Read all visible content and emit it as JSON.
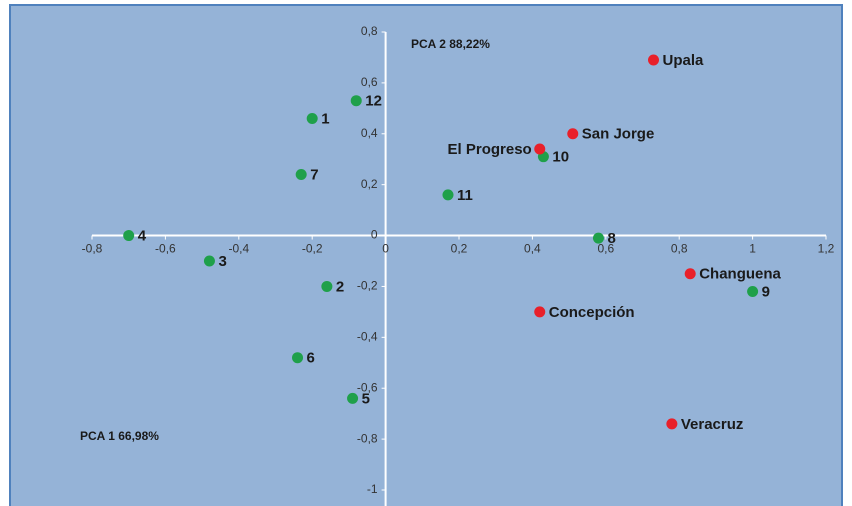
{
  "chart_data": {
    "type": "scatter",
    "annotations": [
      "PCA 2 88,22%",
      "PCA 1 66,98%"
    ],
    "xlim": [
      -0.8,
      1.2
    ],
    "ylim": [
      -1,
      0.8
    ],
    "xticks": [
      {
        "value": -0.8,
        "label": "-0,8"
      },
      {
        "value": -0.6,
        "label": "-0,6"
      },
      {
        "value": -0.4,
        "label": "-0,4"
      },
      {
        "value": -0.2,
        "label": "-0,2"
      },
      0,
      {
        "value": 0.2,
        "label": "0,2"
      },
      {
        "value": 0.4,
        "label": "0,4"
      },
      {
        "value": 0.6,
        "label": "0,6"
      },
      {
        "value": 0.8,
        "label": "0,8"
      },
      1,
      {
        "value": 1.2,
        "label": "1,2"
      }
    ],
    "yticks": [
      -1,
      {
        "value": -0.8,
        "label": "-0,8"
      },
      {
        "value": -0.6,
        "label": "-0,6"
      },
      {
        "value": -0.4,
        "label": "-0,4"
      },
      {
        "value": -0.2,
        "label": "-0,2"
      },
      0,
      {
        "value": 0.2,
        "label": "0,2"
      },
      {
        "value": 0.4,
        "label": "0,4"
      },
      {
        "value": 0.6,
        "label": "0,6"
      },
      {
        "value": 0.8,
        "label": "0,8"
      }
    ],
    "series": [
      {
        "color": "#1fa04a",
        "labels": [
          "12",
          "1",
          "7",
          "11",
          "10",
          "4",
          "3",
          "2",
          "8",
          "6",
          "5",
          "9"
        ],
        "x": [
          -0.08,
          -0.2,
          -0.23,
          0.17,
          0.43,
          -0.7,
          -0.48,
          -0.16,
          0.58,
          -0.24,
          -0.09,
          1.0
        ],
        "values": [
          0.53,
          0.46,
          0.24,
          0.16,
          0.31,
          0.0,
          -0.1,
          -0.2,
          -0.01,
          -0.48,
          -0.64,
          -0.22
        ]
      },
      {
        "color": "#e8202a",
        "labels": [
          "Upala",
          "San Jorge",
          "El Progreso",
          "Changuena",
          "Concepción",
          "Veracruz"
        ],
        "x": [
          0.73,
          0.51,
          0.42,
          0.83,
          0.42,
          0.78
        ],
        "values": [
          0.69,
          0.4,
          0.34,
          -0.15,
          -0.3,
          -0.74
        ]
      }
    ]
  }
}
